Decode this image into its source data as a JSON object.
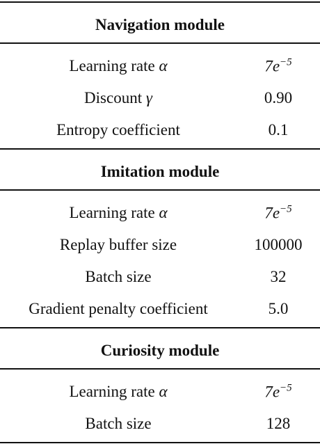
{
  "sections": [
    {
      "title": "Navigation module",
      "rows": [
        {
          "label": "Learning rate",
          "symbol": "α",
          "value": "7e",
          "exponent": "−5"
        },
        {
          "label": "Discount",
          "symbol": "γ",
          "value": "0.90"
        },
        {
          "label": "Entropy coefficient",
          "value": "0.1"
        }
      ]
    },
    {
      "title": "Imitation module",
      "rows": [
        {
          "label": "Learning rate",
          "symbol": "α",
          "value": "7e",
          "exponent": "−5"
        },
        {
          "label": "Replay buffer size",
          "value": "100000"
        },
        {
          "label": "Batch size",
          "value": "32"
        },
        {
          "label": "Gradient penalty coefficient",
          "value": "5.0"
        }
      ]
    },
    {
      "title": "Curiosity module",
      "rows": [
        {
          "label": "Learning rate",
          "symbol": "α",
          "value": "7e",
          "exponent": "−5"
        },
        {
          "label": "Batch size",
          "value": "128"
        }
      ]
    }
  ]
}
